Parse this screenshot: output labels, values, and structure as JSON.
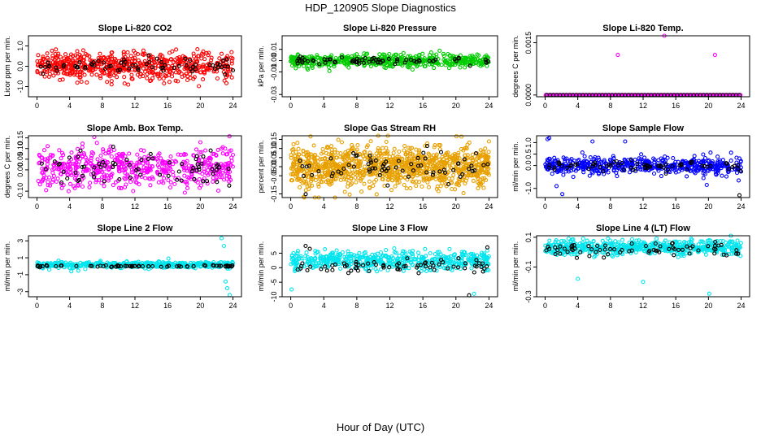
{
  "figure": {
    "title": "HDP_120905  Slope Diagnostics",
    "xlabel": "Hour of Day (UTC)"
  },
  "chart_data": [
    {
      "type": "scatter",
      "title": "Slope Li-820 CO2",
      "ylabel": "Licor ppm per min.",
      "xlim": [
        0,
        24
      ],
      "ylim": [
        -1.5,
        1.5
      ],
      "xticks": [
        "0",
        "4",
        "8",
        "12",
        "16",
        "20",
        "24"
      ],
      "yticks": [
        {
          "v": -1.0,
          "label": "-1.0"
        },
        {
          "v": 0.0,
          "label": "0.0"
        },
        {
          "v": 1.0,
          "label": "1.0"
        }
      ],
      "grid": false,
      "series": [
        {
          "color": "#ff0000",
          "distribution": "dense",
          "center": 0.0,
          "spread": 0.35,
          "count": 620
        },
        {
          "color": "#000000",
          "distribution": "sparse",
          "center": 0.0,
          "spread": 0.18,
          "count": 70
        }
      ]
    },
    {
      "type": "scatter",
      "title": "Slope Li-820 Pressure",
      "ylabel": "kPa per min.",
      "xlim": [
        0,
        24
      ],
      "ylim": [
        -0.032,
        0.022
      ],
      "xticks": [
        "0",
        "4",
        "8",
        "12",
        "16",
        "20",
        "24"
      ],
      "yticks": [
        {
          "v": -0.03,
          "label": "-0.03"
        },
        {
          "v": -0.01,
          "label": "-0.01"
        },
        {
          "v": 0.0,
          "label": "0.00"
        },
        {
          "v": 0.01,
          "label": "0.01"
        }
      ],
      "grid": false,
      "series": [
        {
          "color": "#00cc00",
          "distribution": "dense",
          "center": 0.0,
          "spread": 0.003,
          "count": 560
        },
        {
          "color": "#000000",
          "distribution": "sparse",
          "center": 0.0,
          "spread": 0.0015,
          "count": 70
        }
      ]
    },
    {
      "type": "scatter",
      "title": "Slope Li-820 Temp.",
      "ylabel": "degrees C per min.",
      "xlim": [
        0,
        24
      ],
      "ylim": [
        -5e-05,
        0.0017
      ],
      "xticks": [
        "0",
        "4",
        "8",
        "12",
        "16",
        "20",
        "24"
      ],
      "yticks": [
        {
          "v": 0.0,
          "label": "0.0000"
        },
        {
          "v": 0.0015,
          "label": "0.0015"
        }
      ],
      "grid": false,
      "series": [
        {
          "color": "#ff00ff",
          "distribution": "baseline",
          "center": 0.0,
          "spread": 0.0,
          "count": 160,
          "outliers": [
            [
              0.1,
              0.0
            ],
            [
              8.9,
              0.00115
            ],
            [
              14.6,
              0.0017
            ],
            [
              20.8,
              0.00115
            ]
          ]
        },
        {
          "color": "#000000",
          "distribution": "baseline",
          "center": 0.0,
          "spread": 0.0,
          "count": 60
        }
      ]
    },
    {
      "type": "scatter",
      "title": "Slope Amb. Box Temp.",
      "ylabel": "degrees C per min.",
      "xlim": [
        0,
        24
      ],
      "ylim": [
        -0.13,
        0.16
      ],
      "xticks": [
        "0",
        "4",
        "8",
        "12",
        "16",
        "20",
        "24"
      ],
      "yticks": [
        {
          "v": -0.1,
          "label": "-0.10"
        },
        {
          "v": 0.0,
          "label": "0.00"
        },
        {
          "v": 0.05,
          "label": "0.05"
        },
        {
          "v": 0.1,
          "label": "0.10"
        },
        {
          "v": 0.15,
          "label": "0.15"
        }
      ],
      "grid": false,
      "series": [
        {
          "color": "#ff00ff",
          "distribution": "dense",
          "center": 0.01,
          "spread": 0.045,
          "count": 560
        },
        {
          "color": "#000000",
          "distribution": "sparse",
          "center": 0.01,
          "spread": 0.04,
          "count": 70
        }
      ]
    },
    {
      "type": "scatter",
      "title": "Slope Gas Stream RH",
      "ylabel": "percent per min.",
      "xlim": [
        0,
        24
      ],
      "ylim": [
        -0.17,
        0.17
      ],
      "xticks": [
        "0",
        "4",
        "8",
        "12",
        "16",
        "20",
        "24"
      ],
      "yticks": [
        {
          "v": -0.15,
          "label": "-0.15"
        },
        {
          "v": -0.05,
          "label": "-0.05"
        },
        {
          "v": 0.0,
          "label": "0.00"
        },
        {
          "v": 0.05,
          "label": "0.05"
        },
        {
          "v": 0.1,
          "label": "0.10"
        },
        {
          "v": 0.15,
          "label": "0.15"
        }
      ],
      "grid": false,
      "series": [
        {
          "color": "#e8a000",
          "distribution": "dense",
          "center": 0.0,
          "spread": 0.055,
          "count": 1100
        },
        {
          "color": "#000000",
          "distribution": "sparse",
          "center": 0.0,
          "spread": 0.04,
          "count": 70
        }
      ]
    },
    {
      "type": "scatter",
      "title": "Slope Sample Flow",
      "ylabel": "ml/min per min.",
      "xlim": [
        0,
        24
      ],
      "ylim": [
        -1.4,
        1.3
      ],
      "xticks": [
        "0",
        "4",
        "8",
        "12",
        "16",
        "20",
        "24"
      ],
      "yticks": [
        {
          "v": -1.0,
          "label": "-1.0"
        },
        {
          "v": 0.0,
          "label": "0.0"
        },
        {
          "v": 0.5,
          "label": "0.5"
        },
        {
          "v": 1.0,
          "label": "1.0"
        }
      ],
      "grid": false,
      "series": [
        {
          "color": "#0000ff",
          "distribution": "dense",
          "center": 0.0,
          "spread": 0.18,
          "count": 520,
          "outliers": [
            [
              0.3,
              1.15
            ],
            [
              0.5,
              1.2
            ],
            [
              1.4,
              -0.9
            ],
            [
              2.1,
              -1.25
            ],
            [
              5.8,
              1.05
            ],
            [
              9.8,
              1.05
            ],
            [
              19.4,
              -0.55
            ],
            [
              19.8,
              -0.85
            ],
            [
              23.7,
              -0.65
            ]
          ]
        },
        {
          "color": "#000000",
          "distribution": "sparse",
          "center": 0.0,
          "spread": 0.12,
          "count": 70,
          "outliers": [
            [
              23.8,
              -1.3
            ]
          ]
        }
      ]
    },
    {
      "type": "scatter",
      "title": "Slope Line 2 Flow",
      "ylabel": "ml/min per min.",
      "xlim": [
        0,
        24
      ],
      "ylim": [
        -3.6,
        3.6
      ],
      "xticks": [
        "0",
        "4",
        "8",
        "12",
        "16",
        "20",
        "24"
      ],
      "yticks": [
        {
          "v": -3,
          "label": "-3"
        },
        {
          "v": -1,
          "label": "-1"
        },
        {
          "v": 1,
          "label": "1"
        },
        {
          "v": 3,
          "label": "3"
        }
      ],
      "grid": false,
      "series": [
        {
          "color": "#00e5ee",
          "distribution": "dense",
          "center": 0.15,
          "spread": 0.18,
          "count": 520,
          "outliers": [
            [
              1.5,
              -0.4
            ],
            [
              4.2,
              -0.6
            ],
            [
              16.1,
              0.9
            ],
            [
              22.6,
              3.3
            ],
            [
              22.9,
              2.4
            ],
            [
              23.1,
              -1.8
            ],
            [
              23.3,
              -2.6
            ],
            [
              23.6,
              -3.4
            ]
          ]
        },
        {
          "color": "#000000",
          "distribution": "sparse",
          "center": 0.0,
          "spread": 0.05,
          "count": 70
        }
      ]
    },
    {
      "type": "scatter",
      "title": "Slope Line 3 Flow",
      "ylabel": "ml/min per min.",
      "xlim": [
        0,
        24
      ],
      "ylim": [
        -10,
        11
      ],
      "xticks": [
        "0",
        "4",
        "8",
        "12",
        "16",
        "20",
        "24"
      ],
      "yticks": [
        {
          "v": -10,
          "label": "-10"
        },
        {
          "v": -5,
          "label": "-5"
        },
        {
          "v": 0,
          "label": "0"
        },
        {
          "v": 5,
          "label": "5"
        }
      ],
      "grid": false,
      "series": [
        {
          "color": "#00e5ee",
          "distribution": "dense",
          "center": 2.5,
          "spread": 1.6,
          "count": 520,
          "outliers": [
            [
              0.1,
              -7.5
            ],
            [
              22.2,
              -9.0
            ]
          ]
        },
        {
          "color": "#000000",
          "distribution": "sparse",
          "center": 0.3,
          "spread": 1.0,
          "count": 70,
          "outliers": [
            [
              1.8,
              7.5
            ],
            [
              2.3,
              6.5
            ],
            [
              21.6,
              -9.5
            ],
            [
              23.8,
              7.0
            ]
          ]
        }
      ]
    },
    {
      "type": "scatter",
      "title": "Slope Line 4 (LT) Flow",
      "ylabel": "ml/min per min.",
      "xlim": [
        0,
        24
      ],
      "ylim": [
        -0.3,
        0.11
      ],
      "xticks": [
        "0",
        "4",
        "8",
        "12",
        "16",
        "20",
        "24"
      ],
      "yticks": [
        {
          "v": -0.3,
          "label": "-0.3"
        },
        {
          "v": -0.1,
          "label": "-0.1"
        },
        {
          "v": 0.1,
          "label": "0.1"
        }
      ],
      "grid": false,
      "series": [
        {
          "color": "#00e5ee",
          "distribution": "dense",
          "center": 0.03,
          "spread": 0.025,
          "count": 560,
          "outliers": [
            [
              4.0,
              -0.18
            ],
            [
              12.0,
              -0.2
            ],
            [
              20.1,
              -0.28
            ]
          ]
        },
        {
          "color": "#000000",
          "distribution": "sparse",
          "center": 0.02,
          "spread": 0.02,
          "count": 70
        }
      ]
    }
  ]
}
